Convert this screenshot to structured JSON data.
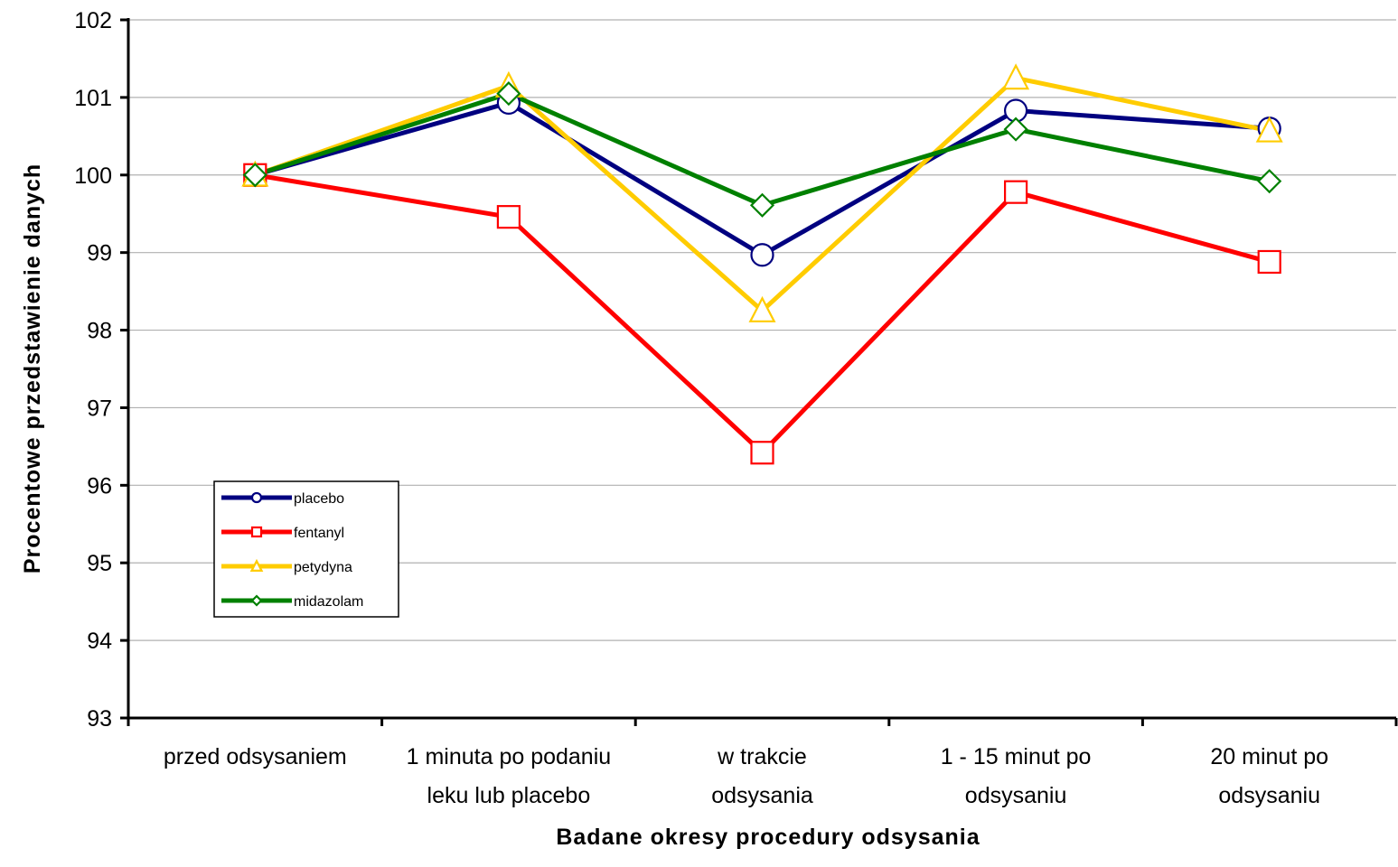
{
  "chart_data": {
    "type": "line",
    "title": "",
    "xlabel": "Badane okresy procedury odsysania",
    "ylabel": "Procentowe przedstawienie danych",
    "ylim": [
      93,
      102
    ],
    "yticks": [
      93,
      94,
      95,
      96,
      97,
      98,
      99,
      100,
      101,
      102
    ],
    "grid": "horizontal",
    "legend_position": "lower-left",
    "categories": [
      [
        "przed odsysaniem"
      ],
      [
        "1 minuta po podaniu",
        "leku lub placebo"
      ],
      [
        "w  trakcie",
        "odsysania"
      ],
      [
        "1 - 15 minut po",
        "odsysaniu"
      ],
      [
        "20 minut po",
        "odsysaniu"
      ]
    ],
    "series": [
      {
        "name": "placebo",
        "color": "#000080",
        "marker": "circle",
        "values": [
          100.0,
          100.93,
          98.97,
          100.83,
          100.6
        ]
      },
      {
        "name": "fentanyl",
        "color": "#ff0000",
        "marker": "square",
        "values": [
          100.0,
          99.46,
          96.42,
          99.78,
          98.88
        ]
      },
      {
        "name": "petydyna",
        "color": "#ffcc00",
        "marker": "triangle",
        "values": [
          100.0,
          101.15,
          98.25,
          101.25,
          100.57
        ]
      },
      {
        "name": "midazolam",
        "color": "#008000",
        "marker": "diamond",
        "values": [
          100.0,
          101.05,
          99.61,
          100.59,
          99.92
        ]
      }
    ]
  }
}
